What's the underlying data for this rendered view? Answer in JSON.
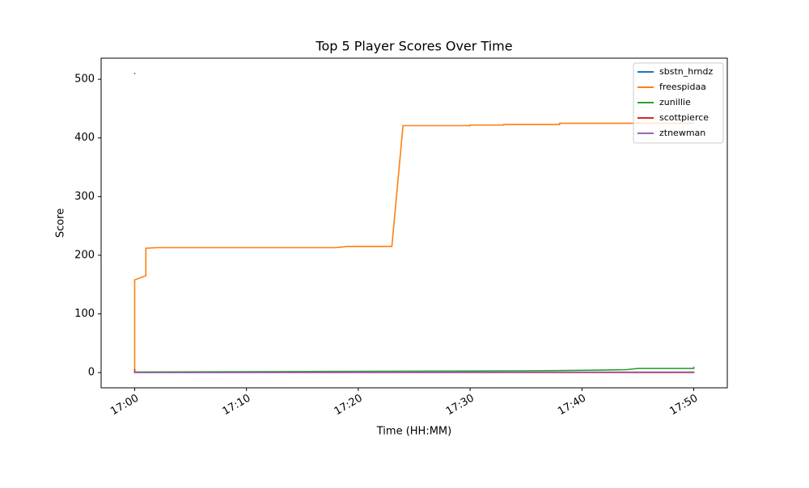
{
  "chart_data": {
    "type": "line",
    "title": "Top 5 Player Scores Over Time",
    "x_label": "Time (HH:MM)",
    "y_label": "Score",
    "xlim": [
      "16:57",
      "17:53"
    ],
    "xticks": [
      "17:00",
      "17:10",
      "17:20",
      "17:30",
      "17:40",
      "17:50"
    ],
    "ylim": [
      -26,
      536
    ],
    "yticks": [
      0,
      100,
      200,
      300,
      400,
      500
    ],
    "grid": false,
    "legend": "upper right",
    "series": [
      {
        "name": "sbstn_hrndz",
        "color": "#1f77b4",
        "x": [
          "17:00",
          "17:00"
        ],
        "values": [
          510,
          510
        ]
      },
      {
        "name": "freespidaa",
        "color": "#ff7f0e",
        "x": [
          "17:00",
          "17:00",
          "17:01",
          "17:01",
          "17:02",
          "17:18",
          "17:19",
          "17:23",
          "17:24",
          "17:30",
          "17:30",
          "17:33",
          "17:33",
          "17:38",
          "17:38",
          "17:50"
        ],
        "values": [
          5,
          158,
          165,
          212,
          213,
          213,
          215,
          215,
          421,
          421,
          422,
          422,
          423,
          423,
          425,
          425
        ]
      },
      {
        "name": "zunillie",
        "color": "#2ca02c",
        "x": [
          "17:00",
          "17:18",
          "17:36",
          "17:41",
          "17:44",
          "17:45",
          "17:50",
          "17:50"
        ],
        "values": [
          1,
          2,
          3,
          4,
          5,
          7,
          7,
          9
        ]
      },
      {
        "name": "scottpierce",
        "color": "#d62728",
        "x": [
          "17:00",
          "17:00",
          "17:50"
        ],
        "values": [
          5,
          0,
          0
        ]
      },
      {
        "name": "ztnewman",
        "color": "#9467bd",
        "x": [
          "17:00",
          "17:05",
          "17:50"
        ],
        "values": [
          0,
          0,
          1
        ]
      }
    ]
  }
}
